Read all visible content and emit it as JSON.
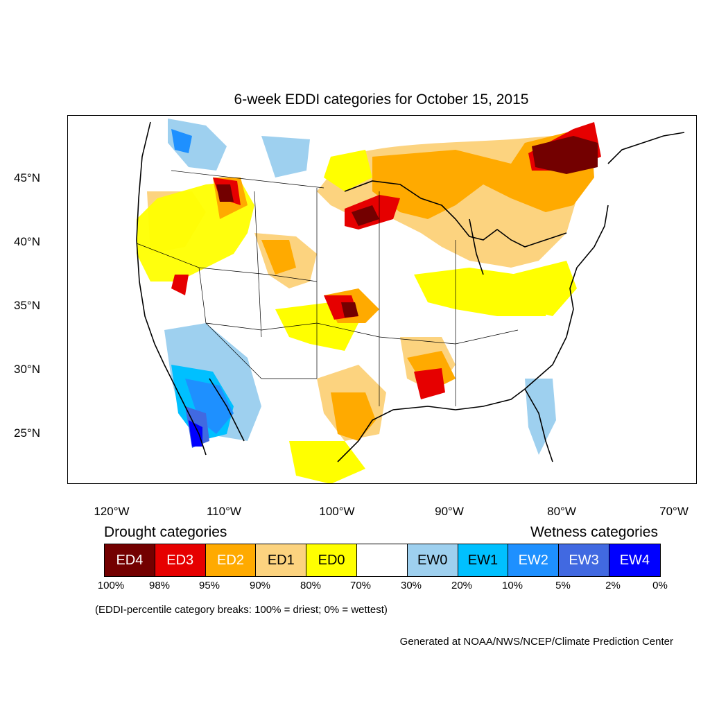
{
  "title": "6-week EDDI categories for October 15, 2015",
  "lat_labels": [
    "45°N",
    "40°N",
    "35°N",
    "30°N",
    "25°N"
  ],
  "lon_labels": [
    "120°W",
    "110°W",
    "100°W",
    "90°W",
    "80°W",
    "70°W"
  ],
  "legend": {
    "drought_title": "Drought categories",
    "wetness_title": "Wetness categories",
    "categories": [
      {
        "label": "ED4",
        "color": "#730000",
        "text_color": "#ffffff"
      },
      {
        "label": "ED3",
        "color": "#e60000",
        "text_color": "#ffffff"
      },
      {
        "label": "ED2",
        "color": "#ffaa00",
        "text_color": "#ffffff"
      },
      {
        "label": "ED1",
        "color": "#fcd37f",
        "text_color": "#000000"
      },
      {
        "label": "ED0",
        "color": "#ffff00",
        "text_color": "#000000"
      },
      {
        "label": "",
        "color": "#ffffff",
        "text_color": "#000000"
      },
      {
        "label": "EW0",
        "color": "#9ed0ef",
        "text_color": "#000000"
      },
      {
        "label": "EW1",
        "color": "#00c0ff",
        "text_color": "#000000"
      },
      {
        "label": "EW2",
        "color": "#1e90ff",
        "text_color": "#ffffff"
      },
      {
        "label": "EW3",
        "color": "#4169e1",
        "text_color": "#ffffff"
      },
      {
        "label": "EW4",
        "color": "#0000ff",
        "text_color": "#ffffff"
      }
    ],
    "breaks": [
      "100%",
      "98%",
      "95%",
      "90%",
      "80%",
      "70%",
      "30%",
      "20%",
      "10%",
      "5%",
      "2%",
      "0%"
    ]
  },
  "note": "(EDDI-percentile category breaks: 100% = driest; 0% = wettest)",
  "credit": "Generated at NOAA/NWS/NCEP/Climate Prediction Center"
}
